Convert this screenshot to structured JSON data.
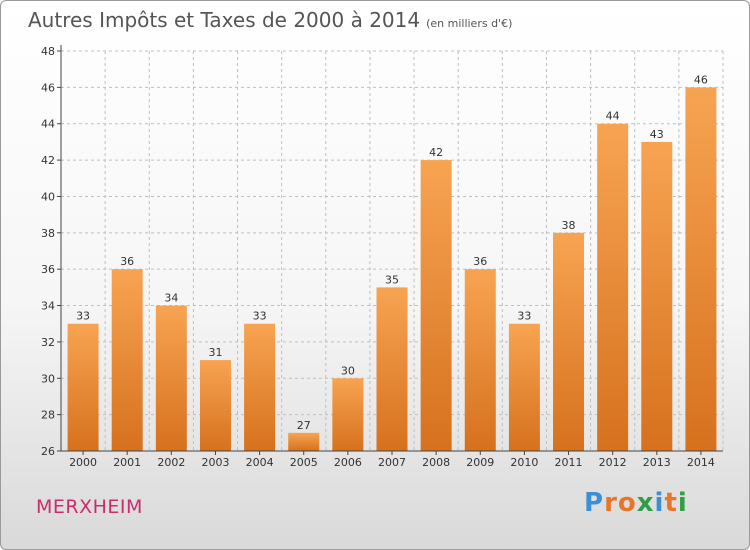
{
  "title": {
    "main": "Autres Impôts et Taxes de 2000 à 2014",
    "unit": "(en milliers d'€)"
  },
  "place": "MERXHEIM",
  "logo": {
    "text": "Proxiti",
    "colors": [
      "#3a8fd6",
      "#e8762a",
      "#e8762a",
      "#2f9e44",
      "#3a8fd6",
      "#e8762a",
      "#2f9e44"
    ]
  },
  "colors": {
    "bar_top": "#f7a452",
    "bar_bottom": "#d6711e",
    "grid": "#bfbfbf",
    "axis": "#444444"
  },
  "chart_data": {
    "type": "bar",
    "categories": [
      "2000",
      "2001",
      "2002",
      "2003",
      "2004",
      "2005",
      "2006",
      "2007",
      "2008",
      "2009",
      "2010",
      "2011",
      "2012",
      "2013",
      "2014"
    ],
    "values": [
      33,
      36,
      34,
      31,
      33,
      27,
      30,
      35,
      42,
      36,
      33,
      38,
      44,
      43,
      46
    ],
    "title": "Autres Impôts et Taxes de 2000 à 2014",
    "ylabel": "",
    "xlabel": "",
    "ylim": [
      26,
      48
    ],
    "yticks": [
      26,
      28,
      30,
      32,
      34,
      36,
      38,
      40,
      42,
      44,
      46,
      48
    ],
    "grid": "horizontal dashed",
    "legend": "none"
  }
}
